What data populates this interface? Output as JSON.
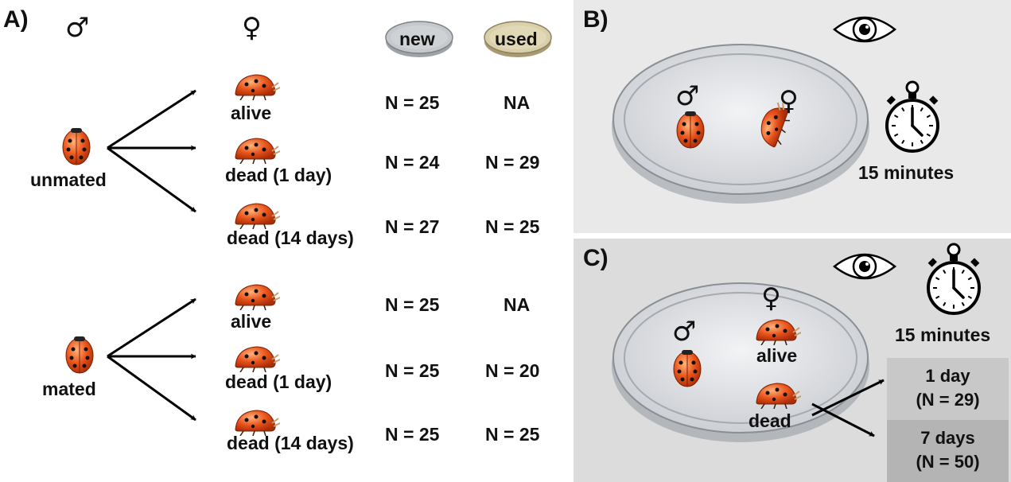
{
  "panelA": {
    "label": "A)",
    "male_symbol": "♂",
    "female_symbol": "♀",
    "columns": {
      "new": "new",
      "used": "used"
    },
    "groups": [
      {
        "name": "unmated",
        "rows": [
          {
            "label": "alive",
            "new": "N = 25",
            "used": "NA"
          },
          {
            "label": "dead (1 day)",
            "new": "N = 24",
            "used": "N = 29"
          },
          {
            "label": "dead (14 days)",
            "new": "N = 27",
            "used": "N = 25"
          }
        ]
      },
      {
        "name": "mated",
        "rows": [
          {
            "label": "alive",
            "new": "N = 25",
            "used": "NA"
          },
          {
            "label": "dead (1 day)",
            "new": "N = 25",
            "used": "N = 20"
          },
          {
            "label": "dead (14 days)",
            "new": "N = 25",
            "used": "N = 25"
          }
        ]
      }
    ]
  },
  "panelB": {
    "label": "B)",
    "male_symbol": "♂",
    "female_symbol": "♀",
    "duration": "15 minutes"
  },
  "panelC": {
    "label": "C)",
    "male_symbol": "♂",
    "female_symbol": "♀",
    "alive": "alive",
    "dead": "dead",
    "duration": "15 minutes",
    "outcomes": [
      {
        "line1": "1 day",
        "line2": "(N = 29)"
      },
      {
        "line1": "7 days",
        "line2": "(N = 50)"
      }
    ]
  },
  "colors": {
    "panelB_bg": "#e9e9e9",
    "panelC_bg": "#dcdcdc",
    "box1": "#c8c8c8",
    "box2": "#b4b4b4",
    "beetle": "#e8521a"
  }
}
